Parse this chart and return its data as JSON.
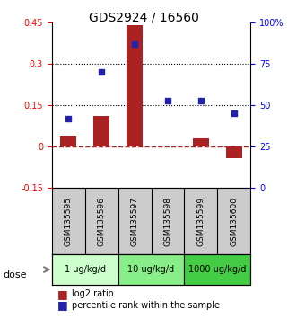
{
  "title": "GDS2924 / 16560",
  "samples": [
    "GSM135595",
    "GSM135596",
    "GSM135597",
    "GSM135598",
    "GSM135599",
    "GSM135600"
  ],
  "log2_ratio": [
    0.04,
    0.11,
    0.44,
    0.0,
    0.03,
    -0.04
  ],
  "percentile_rank": [
    42,
    70,
    87,
    53,
    53,
    45
  ],
  "ylim_left": [
    -0.15,
    0.45
  ],
  "ylim_right": [
    0,
    100
  ],
  "yticks_left": [
    -0.15,
    0.0,
    0.15,
    0.3,
    0.45
  ],
  "yticks_right": [
    0,
    25,
    50,
    75,
    100
  ],
  "ytick_labels_left": [
    "-0.15",
    "0",
    "0.15",
    "0.3",
    "0.45"
  ],
  "ytick_labels_right": [
    "0",
    "25",
    "50",
    "75",
    "100%"
  ],
  "hlines": [
    0.15,
    0.3
  ],
  "bar_color": "#aa2222",
  "dot_color": "#2222aa",
  "doses": [
    {
      "label": "1 ug/kg/d",
      "samples": [
        "GSM135595",
        "GSM135596"
      ],
      "color": "#ccffcc"
    },
    {
      "label": "10 ug/kg/d",
      "samples": [
        "GSM135597",
        "GSM135598"
      ],
      "color": "#88ee88"
    },
    {
      "label": "1000 ug/kg/d",
      "samples": [
        "GSM135599",
        "GSM135600"
      ],
      "color": "#44cc44"
    }
  ],
  "legend_bar_label": "log2 ratio",
  "legend_dot_label": "percentile rank within the sample",
  "xlabel_area_color": "#cccccc",
  "dose_label": "dose",
  "bar_width": 0.5
}
